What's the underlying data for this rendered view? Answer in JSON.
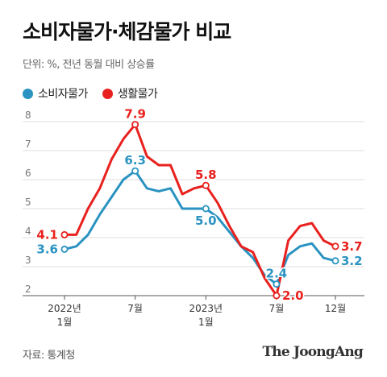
{
  "header": {
    "title": "소비자물가·체감물가 비교",
    "subtitle": "단위: %, 전년 동월 대비 상승률"
  },
  "footer": {
    "source": "자료: 통계청",
    "brand": "The JoongAng"
  },
  "colors": {
    "consumer": "#2a93c1",
    "living": "#e8211e",
    "grid": "#d0d0d0",
    "text": "#333333"
  },
  "chart_data": {
    "type": "line",
    "ylim": [
      2,
      8
    ],
    "yticks": [
      "2",
      "3",
      "4",
      "5",
      "6",
      "7",
      "8"
    ],
    "x": [
      "2022-01",
      "2022-02",
      "2022-03",
      "2022-04",
      "2022-05",
      "2022-06",
      "2022-07",
      "2022-08",
      "2022-09",
      "2022-10",
      "2022-11",
      "2022-12",
      "2023-01",
      "2023-02",
      "2023-03",
      "2023-04",
      "2023-05",
      "2023-06",
      "2023-07",
      "2023-08",
      "2023-09",
      "2023-10",
      "2023-11",
      "2023-12"
    ],
    "xtick_labels": [
      {
        "index": 0,
        "lines": [
          "2022년",
          "1월"
        ]
      },
      {
        "index": 6,
        "lines": [
          "7월"
        ]
      },
      {
        "index": 12,
        "lines": [
          "2023년",
          "1월"
        ]
      },
      {
        "index": 18,
        "lines": [
          "7월"
        ]
      },
      {
        "index": 23,
        "lines": [
          "12월"
        ]
      }
    ],
    "legend": "top-left",
    "series": [
      {
        "name": "소비자물가",
        "color_key": "consumer",
        "values": [
          3.6,
          3.7,
          4.1,
          4.8,
          5.4,
          6.0,
          6.3,
          5.7,
          5.6,
          5.7,
          5.0,
          5.0,
          5.0,
          4.7,
          4.2,
          3.7,
          3.3,
          2.7,
          2.4,
          3.4,
          3.7,
          3.8,
          3.3,
          3.2
        ],
        "labels": [
          {
            "index": 0,
            "text": "3.6",
            "pos": "left"
          },
          {
            "index": 6,
            "text": "6.3",
            "pos": "above"
          },
          {
            "index": 12,
            "text": "5.0",
            "pos": "below"
          },
          {
            "index": 18,
            "text": "2.4",
            "pos": "above"
          },
          {
            "index": 23,
            "text": "3.2",
            "pos": "right"
          }
        ]
      },
      {
        "name": "생활물가",
        "color_key": "living",
        "values": [
          4.1,
          4.1,
          5.0,
          5.7,
          6.7,
          7.4,
          7.9,
          6.8,
          6.5,
          6.5,
          5.5,
          5.7,
          5.8,
          5.2,
          4.4,
          3.7,
          3.5,
          2.6,
          2.0,
          3.9,
          4.4,
          4.5,
          3.9,
          3.7
        ],
        "labels": [
          {
            "index": 0,
            "text": "4.1",
            "pos": "left"
          },
          {
            "index": 6,
            "text": "7.9",
            "pos": "above"
          },
          {
            "index": 12,
            "text": "5.8",
            "pos": "above"
          },
          {
            "index": 18,
            "text": "2.0",
            "pos": "right"
          },
          {
            "index": 23,
            "text": "3.7",
            "pos": "right"
          }
        ]
      }
    ]
  }
}
